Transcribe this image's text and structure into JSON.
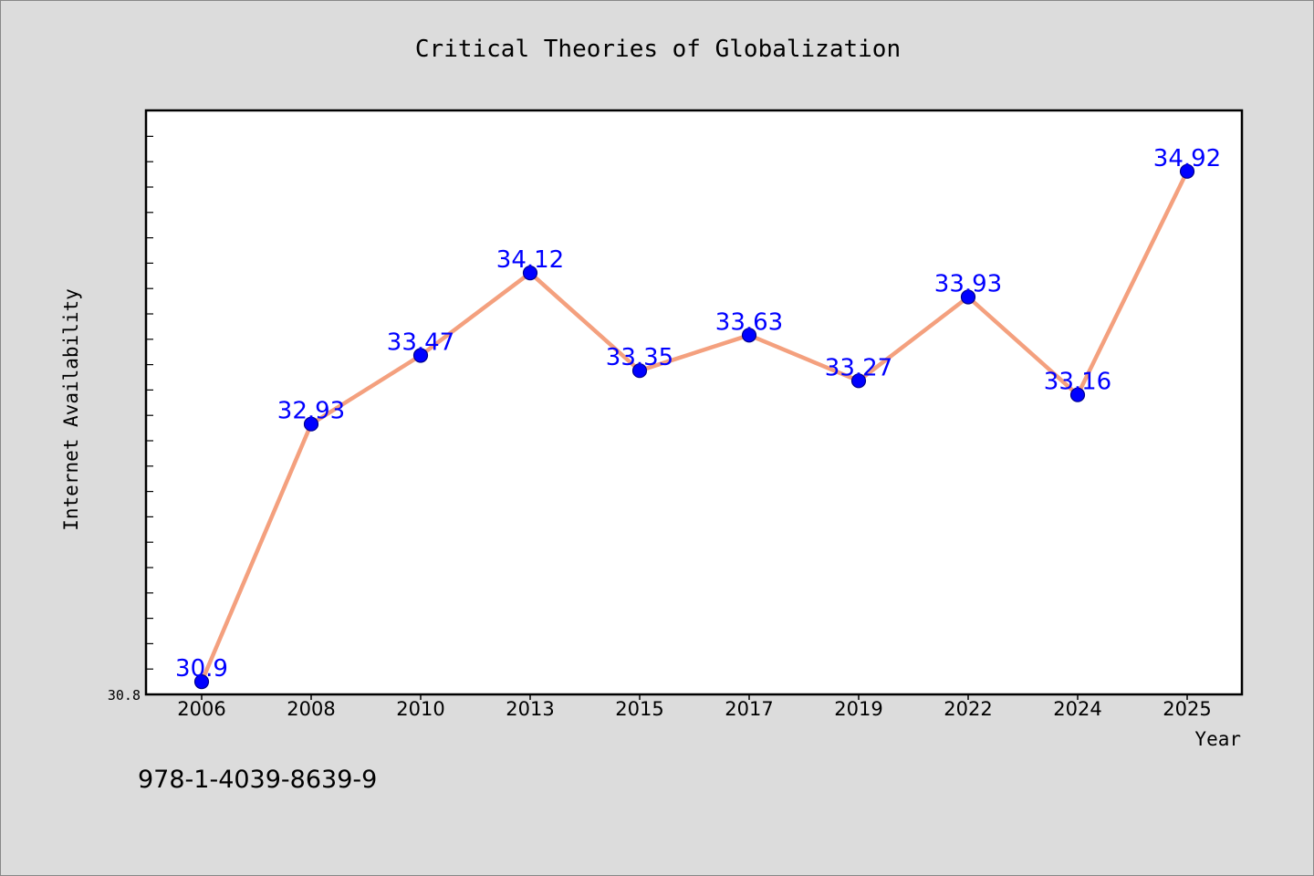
{
  "chart_data": {
    "type": "line",
    "title": "Critical Theories of Globalization",
    "xlabel": "Year",
    "ylabel": "Internet Availability",
    "categories": [
      "2006",
      "2008",
      "2010",
      "2013",
      "2015",
      "2017",
      "2019",
      "2022",
      "2024",
      "2025"
    ],
    "series": [
      {
        "values": [
          30.9,
          32.93,
          33.47,
          34.12,
          33.35,
          33.63,
          33.27,
          33.93,
          33.16,
          34.92
        ],
        "data_labels": [
          "30.9",
          "32.93",
          "33.47",
          "34.12",
          "33.35",
          "33.63",
          "33.27",
          "33.93",
          "33.16",
          "34.92"
        ]
      }
    ],
    "ylim": [
      30.8,
      35.4
    ],
    "yticks": [
      "30.8"
    ],
    "grid": false,
    "colors": {
      "line": "#f4a07e",
      "marker": "#0000ff",
      "marker_edge": "#00008b",
      "data_label": "#0000ff",
      "plot_background": "#ffffff",
      "figure_background": "#dcdcdc"
    }
  },
  "footer": {
    "isbn": "978-1-4039-8639-9"
  }
}
